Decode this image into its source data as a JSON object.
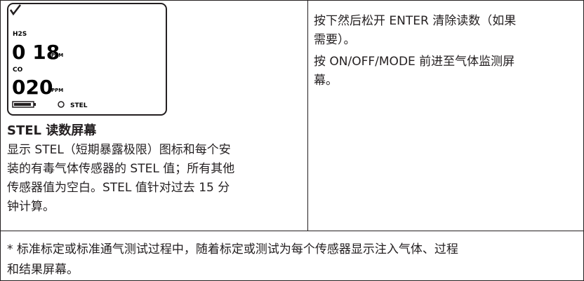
{
  "display": {
    "gas1": "H2S",
    "reading1": "0 18",
    "unit1": "PPM",
    "gas2": "CO",
    "reading2": "020",
    "unit2": "PPM",
    "mode": "STEL"
  },
  "left": {
    "title": "STEL 读数屏幕",
    "lines": [
      "显示 STEL（短期暴露极限）图标和每个安",
      "装的有毒气体传感器的 STEL 值；所有其他",
      "传感器值为空白。STEL 值针对过去 15 分",
      "钟计算。"
    ]
  },
  "right": {
    "paragraphs": [
      [
        "按下然后松开 ENTER 清除读数（如果",
        "需要）。"
      ],
      [
        "按 ON/OFF/MODE 前进至气体监测屏",
        "幕。"
      ]
    ]
  },
  "footer": {
    "lines": [
      "* 标准标定或标准通气测试过程中，随着标定或测试为每个传感器显示注入气体、过程",
      "和结果屏幕。"
    ]
  }
}
